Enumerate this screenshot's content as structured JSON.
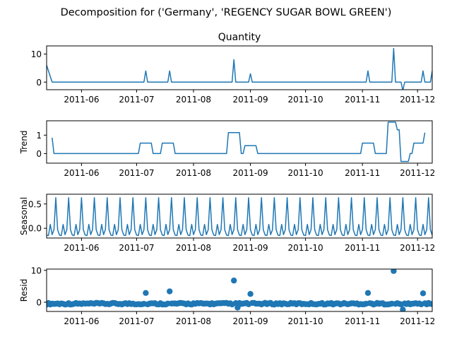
{
  "suptitle": "Decomposition for ('Germany', 'REGENCY SUGAR BOWL GREEN')",
  "colors": {
    "series": "#1f77b4",
    "axis": "#000000",
    "background": "#ffffff"
  },
  "x_date_range": [
    "2011-05-13",
    "2011-12-09"
  ],
  "x_ticks": [
    {
      "date": "2011-06-01",
      "label": "2011-06"
    },
    {
      "date": "2011-07-01",
      "label": "2011-07"
    },
    {
      "date": "2011-08-01",
      "label": "2011-08"
    },
    {
      "date": "2011-09-01",
      "label": "2011-09"
    },
    {
      "date": "2011-10-01",
      "label": "2011-10"
    },
    {
      "date": "2011-11-01",
      "label": "2011-11"
    },
    {
      "date": "2011-12-01",
      "label": "2011-12"
    }
  ],
  "chart_data": [
    {
      "type": "line",
      "title": "Quantity",
      "ylabel": "",
      "ylim": [
        -2.7,
        12.9
      ],
      "yticks": [
        0,
        10
      ],
      "grid": false,
      "points": [
        [
          "2011-05-13",
          6
        ],
        [
          "2011-05-16",
          0
        ],
        [
          "2011-07-05",
          0
        ],
        [
          "2011-07-06",
          4
        ],
        [
          "2011-07-07",
          0
        ],
        [
          "2011-07-18",
          0
        ],
        [
          "2011-07-19",
          4
        ],
        [
          "2011-07-20",
          0
        ],
        [
          "2011-08-22",
          0
        ],
        [
          "2011-08-23",
          8
        ],
        [
          "2011-08-24",
          0
        ],
        [
          "2011-08-31",
          0
        ],
        [
          "2011-09-01",
          3
        ],
        [
          "2011-09-02",
          0
        ],
        [
          "2011-11-03",
          0
        ],
        [
          "2011-11-04",
          4
        ],
        [
          "2011-11-05",
          0
        ],
        [
          "2011-11-17",
          0
        ],
        [
          "2011-11-18",
          12
        ],
        [
          "2011-11-19",
          0
        ],
        [
          "2011-11-22",
          0
        ],
        [
          "2011-11-23",
          -3
        ],
        [
          "2011-11-24",
          0
        ],
        [
          "2011-12-03",
          0
        ],
        [
          "2011-12-04",
          4
        ],
        [
          "2011-12-05",
          0
        ],
        [
          "2011-12-08",
          0
        ],
        [
          "2011-12-09",
          4
        ]
      ]
    },
    {
      "type": "line",
      "title": "",
      "ylabel": "Trend",
      "ylim": [
        -0.52,
        1.78
      ],
      "yticks": [
        0,
        1
      ],
      "grid": false,
      "points": [
        [
          "2011-05-16",
          0.86
        ],
        [
          "2011-05-17",
          0
        ],
        [
          "2011-07-02",
          0
        ],
        [
          "2011-07-03",
          0.57
        ],
        [
          "2011-07-09",
          0.57
        ],
        [
          "2011-07-10",
          0
        ],
        [
          "2011-07-14",
          0
        ],
        [
          "2011-07-15",
          0.57
        ],
        [
          "2011-07-21",
          0.57
        ],
        [
          "2011-07-22",
          0
        ],
        [
          "2011-08-19",
          0
        ],
        [
          "2011-08-20",
          1.14
        ],
        [
          "2011-08-26",
          1.14
        ],
        [
          "2011-08-27",
          0
        ],
        [
          "2011-08-28",
          0
        ],
        [
          "2011-08-29",
          0.43
        ],
        [
          "2011-09-04",
          0.43
        ],
        [
          "2011-09-05",
          0
        ],
        [
          "2011-10-31",
          0
        ],
        [
          "2011-11-01",
          0.57
        ],
        [
          "2011-11-07",
          0.57
        ],
        [
          "2011-11-08",
          0
        ],
        [
          "2011-11-14",
          0
        ],
        [
          "2011-11-15",
          1.71
        ],
        [
          "2011-11-19",
          1.71
        ],
        [
          "2011-11-20",
          1.29
        ],
        [
          "2011-11-21",
          1.29
        ],
        [
          "2011-11-22",
          -0.43
        ],
        [
          "2011-11-26",
          -0.43
        ],
        [
          "2011-11-27",
          0
        ],
        [
          "2011-11-28",
          0
        ],
        [
          "2011-11-29",
          0.57
        ],
        [
          "2011-12-04",
          0.57
        ],
        [
          "2011-12-05",
          1.14
        ]
      ]
    },
    {
      "type": "line",
      "title": "",
      "ylabel": "Seasonal",
      "ylim": [
        -0.2,
        0.7
      ],
      "yticks": [
        0.0,
        0.5
      ],
      "grid": false,
      "period_days": 7,
      "pattern": [
        -0.14,
        -0.15,
        0.08,
        -0.13,
        -0.03,
        0.63,
        -0.03
      ],
      "start": "2011-05-13",
      "end": "2011-12-09"
    },
    {
      "type": "scatter",
      "title": "",
      "ylabel": "Resid",
      "ylim": [
        -2.9,
        10.4
      ],
      "yticks": [
        0,
        10
      ],
      "grid": false,
      "zero_line": true,
      "outliers": [
        [
          "2011-07-06",
          2.9
        ],
        [
          "2011-07-19",
          3.4
        ],
        [
          "2011-08-23",
          6.8
        ],
        [
          "2011-08-25",
          -1.7
        ],
        [
          "2011-09-01",
          2.6
        ],
        [
          "2011-11-04",
          2.9
        ],
        [
          "2011-11-18",
          9.8
        ],
        [
          "2011-11-23",
          -2.3
        ],
        [
          "2011-12-04",
          2.8
        ]
      ],
      "residual_band": [
        -1.1,
        0.2
      ]
    }
  ]
}
